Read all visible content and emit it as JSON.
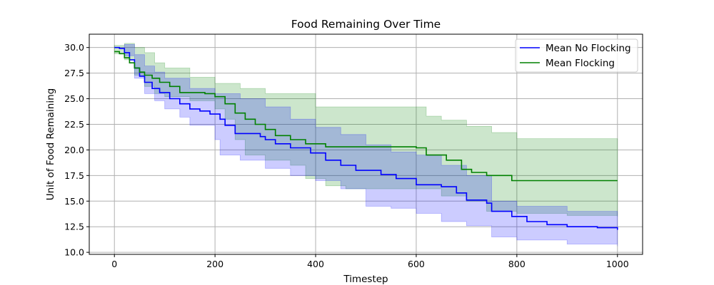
{
  "chart_data": {
    "type": "line",
    "title": "Food Remaining Over Time",
    "xlabel": "Timestep",
    "ylabel": "Unit of Food Remaining",
    "xlim": [
      -50,
      1050
    ],
    "ylim": [
      9.8,
      31.3
    ],
    "xticks": [
      0,
      200,
      400,
      600,
      800,
      1000
    ],
    "yticks": [
      10.0,
      12.5,
      15.0,
      17.5,
      20.0,
      22.5,
      25.0,
      27.5,
      30.0
    ],
    "grid": true,
    "legend_position": "top-right",
    "series": [
      {
        "name": "Mean No Flocking",
        "color": "#0000ff",
        "band_color": "#0000ff",
        "band_opacity": 0.2,
        "mean": [
          [
            0,
            30.0
          ],
          [
            10,
            29.9
          ],
          [
            20,
            29.5
          ],
          [
            30,
            28.8
          ],
          [
            40,
            28.0
          ],
          [
            50,
            27.2
          ],
          [
            60,
            26.6
          ],
          [
            75,
            26.0
          ],
          [
            90,
            25.6
          ],
          [
            110,
            25.0
          ],
          [
            130,
            24.5
          ],
          [
            150,
            24.0
          ],
          [
            170,
            23.8
          ],
          [
            190,
            23.5
          ],
          [
            210,
            23.0
          ],
          [
            220,
            22.4
          ],
          [
            240,
            21.6
          ],
          [
            260,
            21.6
          ],
          [
            290,
            21.3
          ],
          [
            300,
            21.0
          ],
          [
            320,
            20.6
          ],
          [
            350,
            20.2
          ],
          [
            390,
            19.7
          ],
          [
            420,
            19.0
          ],
          [
            450,
            18.5
          ],
          [
            480,
            18.0
          ],
          [
            530,
            17.6
          ],
          [
            560,
            17.2
          ],
          [
            600,
            16.6
          ],
          [
            650,
            16.4
          ],
          [
            680,
            15.8
          ],
          [
            700,
            15.1
          ],
          [
            740,
            14.8
          ],
          [
            750,
            14.0
          ],
          [
            790,
            13.5
          ],
          [
            820,
            13.0
          ],
          [
            860,
            12.7
          ],
          [
            900,
            12.5
          ],
          [
            960,
            12.4
          ],
          [
            1000,
            12.2
          ]
        ],
        "band_upper": [
          [
            0,
            30.0
          ],
          [
            20,
            30.3
          ],
          [
            40,
            29.3
          ],
          [
            60,
            28.2
          ],
          [
            80,
            27.6
          ],
          [
            100,
            27.0
          ],
          [
            150,
            26.0
          ],
          [
            200,
            25.5
          ],
          [
            250,
            25.0
          ],
          [
            300,
            24.2
          ],
          [
            350,
            23.0
          ],
          [
            400,
            22.2
          ],
          [
            450,
            21.5
          ],
          [
            500,
            20.5
          ],
          [
            550,
            19.8
          ],
          [
            600,
            19.5
          ],
          [
            650,
            18.5
          ],
          [
            700,
            17.5
          ],
          [
            750,
            15.0
          ],
          [
            800,
            14.5
          ],
          [
            900,
            14.0
          ],
          [
            1000,
            13.6
          ]
        ],
        "band_lower": [
          [
            0,
            30.0
          ],
          [
            20,
            29.2
          ],
          [
            40,
            27.0
          ],
          [
            60,
            25.5
          ],
          [
            80,
            24.8
          ],
          [
            100,
            24.0
          ],
          [
            130,
            23.2
          ],
          [
            150,
            22.4
          ],
          [
            200,
            21.0
          ],
          [
            210,
            19.5
          ],
          [
            250,
            19.0
          ],
          [
            300,
            18.2
          ],
          [
            350,
            17.5
          ],
          [
            400,
            17.0
          ],
          [
            450,
            16.2
          ],
          [
            500,
            14.5
          ],
          [
            550,
            14.3
          ],
          [
            600,
            13.8
          ],
          [
            650,
            13.0
          ],
          [
            700,
            12.6
          ],
          [
            750,
            11.5
          ],
          [
            800,
            11.2
          ],
          [
            900,
            10.8
          ],
          [
            1000,
            10.6
          ]
        ]
      },
      {
        "name": "Mean Flocking",
        "color": "#008000",
        "band_color": "#008000",
        "band_opacity": 0.2,
        "mean": [
          [
            0,
            29.6
          ],
          [
            10,
            29.4
          ],
          [
            20,
            29.0
          ],
          [
            30,
            28.5
          ],
          [
            40,
            28.0
          ],
          [
            50,
            27.6
          ],
          [
            60,
            27.3
          ],
          [
            75,
            27.0
          ],
          [
            90,
            26.6
          ],
          [
            110,
            26.2
          ],
          [
            130,
            25.6
          ],
          [
            150,
            25.6
          ],
          [
            180,
            25.5
          ],
          [
            200,
            25.2
          ],
          [
            220,
            24.5
          ],
          [
            240,
            23.6
          ],
          [
            260,
            23.0
          ],
          [
            280,
            22.5
          ],
          [
            300,
            22.0
          ],
          [
            320,
            21.4
          ],
          [
            350,
            21.0
          ],
          [
            380,
            20.6
          ],
          [
            420,
            20.3
          ],
          [
            500,
            20.3
          ],
          [
            600,
            20.2
          ],
          [
            620,
            19.5
          ],
          [
            660,
            19.0
          ],
          [
            690,
            18.1
          ],
          [
            710,
            17.8
          ],
          [
            740,
            17.5
          ],
          [
            790,
            17.0
          ],
          [
            850,
            17.0
          ],
          [
            1000,
            17.0
          ]
        ],
        "band_upper": [
          [
            0,
            30.2
          ],
          [
            20,
            30.4
          ],
          [
            40,
            30.0
          ],
          [
            60,
            29.5
          ],
          [
            80,
            28.5
          ],
          [
            100,
            28.0
          ],
          [
            150,
            27.1
          ],
          [
            200,
            26.5
          ],
          [
            250,
            26.0
          ],
          [
            300,
            25.5
          ],
          [
            400,
            24.2
          ],
          [
            500,
            24.2
          ],
          [
            610,
            24.2
          ],
          [
            620,
            23.3
          ],
          [
            650,
            22.9
          ],
          [
            700,
            22.3
          ],
          [
            750,
            21.7
          ],
          [
            800,
            21.1
          ],
          [
            1000,
            21.1
          ]
        ],
        "band_lower": [
          [
            0,
            29.4
          ],
          [
            20,
            28.8
          ],
          [
            40,
            27.3
          ],
          [
            60,
            26.2
          ],
          [
            80,
            25.5
          ],
          [
            100,
            25.2
          ],
          [
            150,
            24.8
          ],
          [
            200,
            24.0
          ],
          [
            220,
            23.0
          ],
          [
            240,
            21.0
          ],
          [
            260,
            19.5
          ],
          [
            300,
            19.0
          ],
          [
            350,
            18.5
          ],
          [
            380,
            17.2
          ],
          [
            420,
            16.5
          ],
          [
            460,
            16.2
          ],
          [
            500,
            16.2
          ],
          [
            600,
            16.2
          ],
          [
            650,
            15.5
          ],
          [
            700,
            15.0
          ],
          [
            740,
            14.0
          ],
          [
            800,
            13.8
          ],
          [
            900,
            13.6
          ],
          [
            1000,
            13.5
          ]
        ]
      }
    ]
  }
}
